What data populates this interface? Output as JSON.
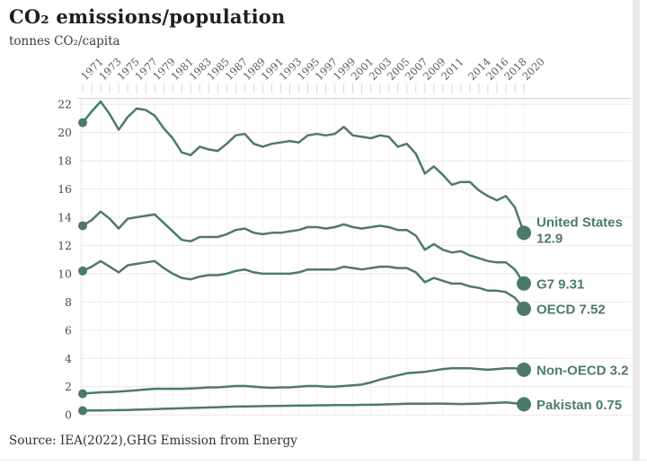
{
  "header": {
    "title": "CO₂ emissions/population",
    "subtitle": "tonnes CO₂/capita"
  },
  "footer": {
    "source": "Source: IEA(2022),GHG Emission from Energy"
  },
  "colors": {
    "line": "#4d796d",
    "dot": "#4d796d",
    "end_label_text": "#4d796d",
    "h_grid": "#e8e8e8",
    "v_grid": "#f2f2f2",
    "tick": "#d9d9d9",
    "axis_line": "#d2d2d2",
    "x_label_text": "#5a5a64",
    "y_label_text": "#4c4c4c"
  },
  "chart_data": {
    "type": "line",
    "title": "CO₂ emissions/population",
    "ylabel": "tonnes CO₂/capita",
    "xlabel": "",
    "grid": true,
    "legend_position": "line-end-right",
    "x_start": 1971,
    "x_end": 2020,
    "x_tick_labels": [
      "1971",
      "1973",
      "1975",
      "1977",
      "1979",
      "1981",
      "1983",
      "1985",
      "1987",
      "1989",
      "1991",
      "1993",
      "1995",
      "1997",
      "1999",
      "2001",
      "2003",
      "2005",
      "2007",
      "2009",
      "2011",
      "2014",
      "2016",
      "2018",
      "2020"
    ],
    "y_ticks": [
      0,
      2,
      4,
      6,
      8,
      10,
      12,
      14,
      16,
      18,
      20,
      22
    ],
    "ylim": [
      0,
      23
    ],
    "series": [
      {
        "name": "United States",
        "end_value": 12.9,
        "end_label_lines": [
          "United States",
          "12.9"
        ],
        "values": [
          20.7,
          21.5,
          22.2,
          21.3,
          20.2,
          21.1,
          21.7,
          21.6,
          21.2,
          20.3,
          19.6,
          18.6,
          18.4,
          19.0,
          18.8,
          18.7,
          19.2,
          19.8,
          19.9,
          19.2,
          19.0,
          19.2,
          19.3,
          19.4,
          19.3,
          19.8,
          19.9,
          19.8,
          19.9,
          20.4,
          19.8,
          19.7,
          19.6,
          19.8,
          19.7,
          19.0,
          19.2,
          18.5,
          17.1,
          17.6,
          17.0,
          16.3,
          16.5,
          16.5,
          15.9,
          15.5,
          15.2,
          15.5,
          14.7,
          12.9
        ]
      },
      {
        "name": "G7",
        "end_value": 9.31,
        "end_label_lines": [
          "G7 9.31"
        ],
        "values": [
          13.4,
          13.8,
          14.4,
          13.9,
          13.2,
          13.9,
          14.0,
          14.1,
          14.2,
          13.6,
          13.0,
          12.4,
          12.3,
          12.6,
          12.6,
          12.6,
          12.8,
          13.1,
          13.2,
          12.9,
          12.8,
          12.9,
          12.9,
          13.0,
          13.1,
          13.3,
          13.3,
          13.2,
          13.3,
          13.5,
          13.3,
          13.2,
          13.3,
          13.4,
          13.3,
          13.1,
          13.1,
          12.7,
          11.7,
          12.1,
          11.7,
          11.5,
          11.6,
          11.3,
          11.1,
          10.9,
          10.8,
          10.8,
          10.3,
          9.31
        ]
      },
      {
        "name": "OECD",
        "end_value": 7.52,
        "end_label_lines": [
          "OECD 7.52"
        ],
        "values": [
          10.2,
          10.5,
          10.9,
          10.5,
          10.1,
          10.6,
          10.7,
          10.8,
          10.9,
          10.4,
          10.0,
          9.7,
          9.6,
          9.8,
          9.9,
          9.9,
          10.0,
          10.2,
          10.3,
          10.1,
          10.0,
          10.0,
          10.0,
          10.0,
          10.1,
          10.3,
          10.3,
          10.3,
          10.3,
          10.5,
          10.4,
          10.3,
          10.4,
          10.5,
          10.5,
          10.4,
          10.4,
          10.1,
          9.4,
          9.7,
          9.5,
          9.3,
          9.3,
          9.1,
          9.0,
          8.8,
          8.8,
          8.7,
          8.3,
          7.52
        ]
      },
      {
        "name": "Non-OECD",
        "end_value": 3.2,
        "end_label_lines": [
          "Non-OECD 3.2"
        ],
        "values": [
          1.5,
          1.55,
          1.6,
          1.62,
          1.65,
          1.7,
          1.75,
          1.8,
          1.85,
          1.85,
          1.85,
          1.85,
          1.87,
          1.9,
          1.95,
          1.95,
          2.0,
          2.05,
          2.05,
          2.0,
          1.95,
          1.92,
          1.95,
          1.95,
          2.0,
          2.05,
          2.05,
          2.0,
          2.0,
          2.05,
          2.1,
          2.15,
          2.3,
          2.5,
          2.65,
          2.8,
          2.95,
          3.0,
          3.05,
          3.15,
          3.25,
          3.3,
          3.3,
          3.3,
          3.25,
          3.2,
          3.25,
          3.3,
          3.3,
          3.2
        ]
      },
      {
        "name": "Pakistan",
        "end_value": 0.75,
        "end_label_lines": [
          "Pakistan 0.75"
        ],
        "values": [
          0.3,
          0.31,
          0.32,
          0.33,
          0.34,
          0.35,
          0.37,
          0.39,
          0.41,
          0.43,
          0.45,
          0.47,
          0.49,
          0.51,
          0.53,
          0.55,
          0.57,
          0.59,
          0.6,
          0.61,
          0.62,
          0.63,
          0.64,
          0.65,
          0.66,
          0.67,
          0.68,
          0.68,
          0.69,
          0.7,
          0.7,
          0.71,
          0.72,
          0.73,
          0.75,
          0.77,
          0.79,
          0.8,
          0.79,
          0.8,
          0.8,
          0.78,
          0.77,
          0.78,
          0.8,
          0.83,
          0.86,
          0.89,
          0.82,
          0.75
        ]
      }
    ]
  }
}
